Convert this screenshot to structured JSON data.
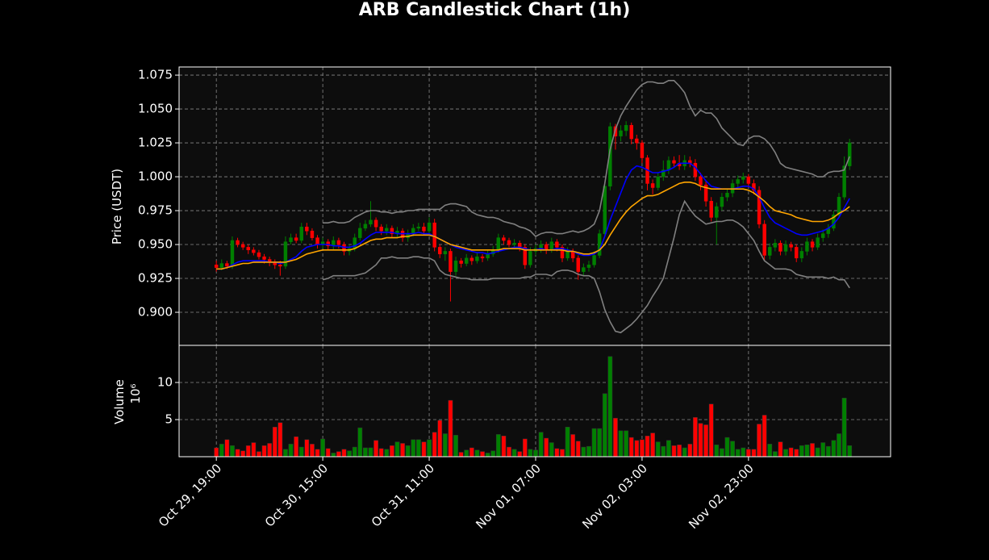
{
  "chart_data": {
    "type": "candlestick",
    "title": "ARB Candlestick Chart (1h)",
    "ylabel": "Price (USDT)",
    "volume_label": "Volume",
    "volume_scale_label": "10⁶",
    "up_color": "#008000",
    "down_color": "#ff0000",
    "grid": true,
    "xlim": [
      -7,
      126.7
    ],
    "xticks": [
      {
        "value": 0,
        "label": "Oct 29, 19:00"
      },
      {
        "value": 20,
        "label": "Oct 30, 15:00"
      },
      {
        "value": 40,
        "label": "Oct 31, 11:00"
      },
      {
        "value": 60,
        "label": "Nov 01, 07:00"
      },
      {
        "value": 80,
        "label": "Nov 02, 03:00"
      },
      {
        "value": 100,
        "label": "Nov 02, 23:00"
      }
    ],
    "ylim": [
      0.8756,
      1.081
    ],
    "yticks": [
      {
        "value": 0.9,
        "label": "0.900"
      },
      0.925,
      {
        "value": 0.95,
        "label": "0.950"
      },
      0.975,
      {
        "value": 1.0,
        "label": "1.000"
      },
      1.025,
      {
        "value": 1.05,
        "label": "1.050"
      },
      1.075
    ],
    "vlim": [
      0,
      15
    ],
    "vticks": [
      5,
      10
    ],
    "open": [
      0.935,
      0.933,
      0.936,
      0.934,
      0.953,
      0.95,
      0.948,
      0.946,
      0.944,
      0.941,
      0.939,
      0.937,
      0.935,
      0.934,
      0.952,
      0.955,
      0.953,
      0.963,
      0.96,
      0.955,
      0.95,
      0.952,
      0.949,
      0.953,
      0.95,
      0.945,
      0.947,
      0.955,
      0.962,
      0.965,
      0.968,
      0.963,
      0.96,
      0.962,
      0.958,
      0.96,
      0.955,
      0.958,
      0.962,
      0.963,
      0.96,
      0.966,
      0.948,
      0.943,
      0.945,
      0.93,
      0.938,
      0.936,
      0.94,
      0.938,
      0.941,
      0.94,
      0.943,
      0.946,
      0.955,
      0.953,
      0.95,
      0.951,
      0.948,
      0.935,
      0.945,
      0.947,
      0.95,
      0.946,
      0.952,
      0.948,
      0.94,
      0.945,
      0.94,
      0.93,
      0.933,
      0.935,
      0.942,
      0.958,
      0.993,
      1.037,
      1.03,
      1.034,
      1.038,
      1.028,
      1.025,
      1.014,
      0.995,
      0.992,
      1.0,
      1.005,
      1.012,
      1.01,
      1.008,
      1.012,
      1.01,
      1.0,
      0.994,
      0.982,
      0.97,
      0.978,
      0.985,
      0.988,
      0.995,
      0.998,
      1.0,
      0.995,
      0.99,
      0.965,
      0.942,
      0.948,
      0.951,
      0.945,
      0.95,
      0.948,
      0.94,
      0.945,
      0.952,
      0.948,
      0.955,
      0.958,
      0.962,
      0.972,
      0.985,
      1.008
    ],
    "high": [
      0.938,
      0.939,
      0.938,
      0.956,
      0.955,
      0.952,
      0.95,
      0.948,
      0.946,
      0.943,
      0.941,
      0.939,
      0.938,
      0.956,
      0.958,
      0.958,
      0.966,
      0.966,
      0.962,
      0.957,
      0.955,
      0.954,
      0.956,
      0.955,
      0.952,
      0.95,
      0.958,
      0.966,
      0.968,
      0.982,
      0.97,
      0.965,
      0.965,
      0.964,
      0.963,
      0.962,
      0.961,
      0.965,
      0.966,
      0.966,
      0.97,
      0.969,
      0.95,
      0.948,
      0.947,
      0.941,
      0.94,
      0.943,
      0.942,
      0.944,
      0.943,
      0.946,
      0.949,
      0.958,
      0.957,
      0.955,
      0.954,
      0.953,
      0.95,
      0.948,
      0.95,
      0.953,
      0.952,
      0.955,
      0.954,
      0.95,
      0.948,
      0.947,
      0.942,
      0.936,
      0.938,
      0.945,
      0.961,
      0.996,
      1.04,
      1.039,
      1.038,
      1.041,
      1.04,
      1.031,
      1.027,
      1.016,
      0.998,
      1.003,
      1.012,
      1.015,
      1.015,
      1.016,
      1.016,
      1.015,
      1.013,
      1.003,
      0.997,
      0.985,
      0.981,
      0.988,
      0.991,
      0.998,
      1.001,
      1.003,
      1.002,
      0.998,
      0.993,
      0.968,
      0.951,
      0.954,
      0.953,
      0.953,
      0.952,
      0.95,
      0.948,
      0.955,
      0.954,
      0.958,
      0.961,
      0.965,
      0.975,
      0.988,
      1.015,
      1.028
    ],
    "low": [
      0.93,
      0.931,
      0.932,
      0.932,
      0.948,
      0.946,
      0.943,
      0.942,
      0.939,
      0.936,
      0.934,
      0.932,
      0.927,
      0.932,
      0.95,
      0.951,
      0.951,
      0.957,
      0.953,
      0.947,
      0.947,
      0.946,
      0.946,
      0.947,
      0.942,
      0.942,
      0.945,
      0.953,
      0.96,
      0.963,
      0.96,
      0.957,
      0.957,
      0.955,
      0.955,
      0.952,
      0.952,
      0.956,
      0.96,
      0.957,
      0.958,
      0.945,
      0.94,
      0.938,
      0.908,
      0.927,
      0.933,
      0.934,
      0.935,
      0.936,
      0.937,
      0.938,
      0.941,
      0.944,
      0.95,
      0.948,
      0.947,
      0.945,
      0.932,
      0.933,
      0.942,
      0.944,
      0.943,
      0.944,
      0.945,
      0.937,
      0.938,
      0.937,
      0.924,
      0.927,
      0.93,
      0.933,
      0.94,
      0.956,
      0.99,
      1.02,
      1.026,
      1.03,
      1.024,
      1.02,
      1.01,
      0.99,
      0.987,
      0.99,
      0.997,
      1.002,
      1.007,
      1.005,
      1.005,
      1.007,
      0.997,
      0.99,
      0.978,
      0.967,
      0.95,
      0.975,
      0.982,
      0.985,
      0.992,
      0.995,
      0.992,
      0.987,
      0.962,
      0.938,
      0.939,
      0.945,
      0.942,
      0.942,
      0.945,
      0.937,
      0.937,
      0.942,
      0.945,
      0.946,
      0.952,
      0.955,
      0.96,
      0.97,
      0.983,
      1.005
    ],
    "close": [
      0.933,
      0.936,
      0.934,
      0.953,
      0.95,
      0.948,
      0.946,
      0.944,
      0.941,
      0.939,
      0.937,
      0.935,
      0.934,
      0.952,
      0.955,
      0.953,
      0.963,
      0.96,
      0.955,
      0.95,
      0.952,
      0.949,
      0.953,
      0.95,
      0.945,
      0.947,
      0.955,
      0.962,
      0.965,
      0.968,
      0.963,
      0.96,
      0.962,
      0.958,
      0.96,
      0.955,
      0.958,
      0.962,
      0.963,
      0.96,
      0.966,
      0.948,
      0.943,
      0.945,
      0.93,
      0.938,
      0.936,
      0.94,
      0.938,
      0.941,
      0.94,
      0.943,
      0.946,
      0.955,
      0.953,
      0.95,
      0.951,
      0.948,
      0.935,
      0.945,
      0.947,
      0.95,
      0.946,
      0.952,
      0.948,
      0.94,
      0.945,
      0.94,
      0.93,
      0.933,
      0.935,
      0.942,
      0.958,
      0.993,
      1.037,
      1.03,
      1.034,
      1.038,
      1.028,
      1.025,
      1.014,
      0.995,
      0.992,
      1.0,
      1.005,
      1.012,
      1.01,
      1.008,
      1.012,
      1.01,
      1.0,
      0.994,
      0.982,
      0.97,
      0.978,
      0.985,
      0.988,
      0.995,
      0.998,
      1.0,
      0.995,
      0.99,
      0.965,
      0.942,
      0.948,
      0.951,
      0.945,
      0.95,
      0.948,
      0.94,
      0.945,
      0.952,
      0.948,
      0.955,
      0.958,
      0.962,
      0.972,
      0.985,
      1.008,
      1.025
    ],
    "volume": [
      1.2,
      1.7,
      2.3,
      1.5,
      1.0,
      0.8,
      1.5,
      1.9,
      0.7,
      1.5,
      1.8,
      4.0,
      4.6,
      1.0,
      1.7,
      2.7,
      1.3,
      2.3,
      1.7,
      1.0,
      2.4,
      1.1,
      0.5,
      0.7,
      1.0,
      0.8,
      1.3,
      3.9,
      1.2,
      1.2,
      2.2,
      1.1,
      1.0,
      1.5,
      2.0,
      1.8,
      1.5,
      2.3,
      2.3,
      2.0,
      2.3,
      3.3,
      4.9,
      3.1,
      7.6,
      2.9,
      0.6,
      0.9,
      1.2,
      0.9,
      0.7,
      0.5,
      0.8,
      3.0,
      2.8,
      1.3,
      1.0,
      0.7,
      2.4,
      1.0,
      0.9,
      3.3,
      2.5,
      1.9,
      1.1,
      1.0,
      4.0,
      3.0,
      2.1,
      1.3,
      1.4,
      3.8,
      3.8,
      8.5,
      13.5,
      5.2,
      3.5,
      3.5,
      2.6,
      2.2,
      2.3,
      2.8,
      3.2,
      2.0,
      1.4,
      2.2,
      1.5,
      1.6,
      1.2,
      1.7,
      5.3,
      4.5,
      4.3,
      7.1,
      1.6,
      1.1,
      2.6,
      2.1,
      1.0,
      1.2,
      1.0,
      1.0,
      4.4,
      5.6,
      1.7,
      0.7,
      2.0,
      1.0,
      1.2,
      1.0,
      1.5,
      1.6,
      1.8,
      1.2,
      1.9,
      1.4,
      2.2,
      3.1,
      7.9,
      1.5
    ],
    "lines": [
      {
        "color": "#0000ff",
        "values": [
          0.932,
          0.932,
          0.933,
          0.935,
          0.937,
          0.938,
          0.938,
          0.938,
          0.938,
          0.938,
          0.937,
          0.937,
          0.936,
          0.937,
          0.939,
          0.941,
          0.945,
          0.948,
          0.949,
          0.95,
          0.95,
          0.95,
          0.949,
          0.949,
          0.948,
          0.948,
          0.949,
          0.951,
          0.954,
          0.957,
          0.959,
          0.959,
          0.959,
          0.959,
          0.958,
          0.958,
          0.958,
          0.958,
          0.959,
          0.958,
          0.958,
          0.956,
          0.954,
          0.952,
          0.95,
          0.948,
          0.947,
          0.946,
          0.945,
          0.944,
          0.944,
          0.943,
          0.944,
          0.945,
          0.946,
          0.947,
          0.948,
          0.948,
          0.947,
          0.946,
          0.946,
          0.947,
          0.946,
          0.946,
          0.947,
          0.947,
          0.946,
          0.945,
          0.943,
          0.942,
          0.942,
          0.943,
          0.946,
          0.956,
          0.968,
          0.978,
          0.988,
          0.998,
          1.005,
          1.008,
          1.007,
          1.005,
          1.003,
          1.003,
          1.004,
          1.005,
          1.007,
          1.01,
          1.01,
          1.01,
          1.007,
          1.002,
          0.997,
          0.993,
          0.992,
          0.991,
          0.991,
          0.991,
          0.992,
          0.993,
          0.993,
          0.991,
          0.985,
          0.977,
          0.97,
          0.966,
          0.964,
          0.962,
          0.96,
          0.958,
          0.957,
          0.957,
          0.958,
          0.959,
          0.96,
          0.962,
          0.965,
          0.97,
          0.977,
          0.984
        ]
      },
      {
        "color": "#ffa500",
        "values": [
          0.932,
          0.932,
          0.933,
          0.934,
          0.935,
          0.936,
          0.936,
          0.937,
          0.937,
          0.937,
          0.937,
          0.937,
          0.937,
          0.937,
          0.938,
          0.939,
          0.941,
          0.943,
          0.944,
          0.945,
          0.946,
          0.946,
          0.946,
          0.946,
          0.946,
          0.946,
          0.947,
          0.949,
          0.951,
          0.953,
          0.954,
          0.954,
          0.955,
          0.955,
          0.955,
          0.956,
          0.956,
          0.957,
          0.957,
          0.957,
          0.957,
          0.956,
          0.954,
          0.952,
          0.95,
          0.949,
          0.948,
          0.947,
          0.946,
          0.946,
          0.946,
          0.946,
          0.946,
          0.946,
          0.947,
          0.947,
          0.947,
          0.947,
          0.946,
          0.946,
          0.946,
          0.946,
          0.946,
          0.946,
          0.946,
          0.946,
          0.945,
          0.945,
          0.944,
          0.943,
          0.943,
          0.944,
          0.946,
          0.95,
          0.957,
          0.963,
          0.969,
          0.974,
          0.978,
          0.981,
          0.984,
          0.986,
          0.986,
          0.987,
          0.989,
          0.991,
          0.993,
          0.995,
          0.996,
          0.996,
          0.995,
          0.993,
          0.992,
          0.991,
          0.991,
          0.991,
          0.991,
          0.991,
          0.991,
          0.991,
          0.99,
          0.988,
          0.985,
          0.982,
          0.978,
          0.975,
          0.974,
          0.973,
          0.972,
          0.97,
          0.969,
          0.968,
          0.967,
          0.967,
          0.967,
          0.968,
          0.97,
          0.973,
          0.975,
          0.978
        ]
      },
      {
        "color": "#808080",
        "values": [
          null,
          null,
          null,
          null,
          null,
          null,
          null,
          null,
          null,
          null,
          null,
          null,
          null,
          null,
          null,
          null,
          null,
          null,
          null,
          null,
          0.966,
          0.966,
          0.967,
          0.966,
          0.966,
          0.967,
          0.97,
          0.972,
          0.974,
          0.975,
          0.975,
          0.974,
          0.974,
          0.973,
          0.974,
          0.974,
          0.975,
          0.975,
          0.976,
          0.976,
          0.976,
          0.976,
          0.976,
          0.979,
          0.98,
          0.98,
          0.979,
          0.978,
          0.974,
          0.972,
          0.971,
          0.97,
          0.97,
          0.969,
          0.967,
          0.966,
          0.965,
          0.963,
          0.962,
          0.96,
          0.956,
          0.958,
          0.959,
          0.959,
          0.958,
          0.958,
          0.959,
          0.96,
          0.959,
          0.96,
          0.962,
          0.965,
          0.975,
          0.995,
          1.02,
          1.035,
          1.045,
          1.052,
          1.058,
          1.064,
          1.068,
          1.07,
          1.07,
          1.069,
          1.069,
          1.071,
          1.071,
          1.067,
          1.062,
          1.052,
          1.045,
          1.049,
          1.047,
          1.047,
          1.043,
          1.036,
          1.032,
          1.028,
          1.024,
          1.023,
          1.028,
          1.03,
          1.03,
          1.028,
          1.024,
          1.018,
          1.01,
          1.007,
          1.006,
          1.005,
          1.004,
          1.003,
          1.002,
          1.0,
          1.0,
          1.003,
          1.004,
          1.004,
          1.005,
          1.015
        ]
      },
      {
        "color": "#808080",
        "values": [
          null,
          null,
          null,
          null,
          null,
          null,
          null,
          null,
          null,
          null,
          null,
          null,
          null,
          null,
          null,
          null,
          null,
          null,
          null,
          null,
          0.924,
          0.925,
          0.927,
          0.927,
          0.927,
          0.927,
          0.927,
          0.928,
          0.929,
          0.932,
          0.935,
          0.94,
          0.94,
          0.941,
          0.94,
          0.94,
          0.94,
          0.941,
          0.941,
          0.94,
          0.94,
          0.938,
          0.931,
          0.928,
          0.927,
          0.926,
          0.925,
          0.925,
          0.924,
          0.924,
          0.924,
          0.924,
          0.925,
          0.925,
          0.925,
          0.925,
          0.925,
          0.925,
          0.926,
          0.926,
          0.928,
          0.928,
          0.928,
          0.927,
          0.93,
          0.931,
          0.931,
          0.93,
          0.928,
          0.927,
          0.927,
          0.925,
          0.915,
          0.902,
          0.893,
          0.886,
          0.885,
          0.888,
          0.891,
          0.895,
          0.9,
          0.905,
          0.912,
          0.918,
          0.925,
          0.94,
          0.955,
          0.972,
          0.982,
          0.976,
          0.971,
          0.968,
          0.965,
          0.966,
          0.967,
          0.967,
          0.968,
          0.968,
          0.966,
          0.963,
          0.958,
          0.953,
          0.945,
          0.938,
          0.935,
          0.932,
          0.932,
          0.932,
          0.931,
          0.928,
          0.927,
          0.926,
          0.926,
          0.926,
          0.926,
          0.925,
          0.926,
          0.924,
          0.924,
          0.918
        ]
      }
    ]
  }
}
